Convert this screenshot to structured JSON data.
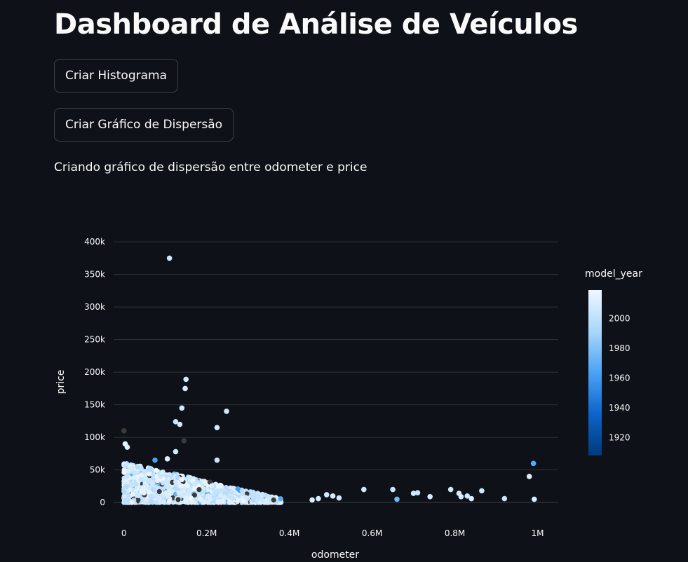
{
  "page": {
    "title": "Dashboard de Análise de Veículos",
    "buttons": {
      "histogram": "Criar Histograma",
      "scatter": "Criar Gráfico de Dispersão"
    },
    "status_text": "Criando gráfico de dispersão entre odometer e price"
  },
  "chart_data": {
    "type": "scatter",
    "xlabel": "odometer",
    "ylabel": "price",
    "xlim": [
      -25000,
      1050000
    ],
    "ylim": [
      -16000,
      412000
    ],
    "x_ticks": [
      {
        "v": 0,
        "label": "0"
      },
      {
        "v": 200000,
        "label": "0.2M"
      },
      {
        "v": 400000,
        "label": "0.4M"
      },
      {
        "v": 600000,
        "label": "0.6M"
      },
      {
        "v": 800000,
        "label": "0.8M"
      },
      {
        "v": 1000000,
        "label": "1M"
      }
    ],
    "y_ticks": [
      {
        "v": 0,
        "label": "0"
      },
      {
        "v": 50000,
        "label": "50k"
      },
      {
        "v": 100000,
        "label": "100k"
      },
      {
        "v": 150000,
        "label": "150k"
      },
      {
        "v": 200000,
        "label": "200k"
      },
      {
        "v": 250000,
        "label": "250k"
      },
      {
        "v": 300000,
        "label": "300k"
      },
      {
        "v": 350000,
        "label": "350k"
      },
      {
        "v": 400000,
        "label": "400k"
      }
    ],
    "grid": true,
    "colorbar": {
      "title": "model_year",
      "range": [
        1908,
        2019
      ],
      "ticks": [
        {
          "v": 2000,
          "label": "2000"
        },
        {
          "v": 1980,
          "label": "1980"
        },
        {
          "v": 1960,
          "label": "1960"
        },
        {
          "v": 1940,
          "label": "1940"
        },
        {
          "v": 1920,
          "label": "1920"
        }
      ],
      "colors": [
        "#003a7a",
        "#0b64c9",
        "#4aa3f5",
        "#a9d6fb",
        "#eef7ff"
      ]
    },
    "cluster": {
      "description": "dense cloud of several thousand listings, odometer 0–0.4M, price 0–60k, model_year mostly 1990–2019"
    },
    "points": [
      {
        "x": 110000,
        "y": 375000,
        "year": 2005
      },
      {
        "x": 150000,
        "y": 189000,
        "year": 2008
      },
      {
        "x": 148000,
        "y": 175000,
        "year": 2010
      },
      {
        "x": 140000,
        "y": 145000,
        "year": 2007
      },
      {
        "x": 248000,
        "y": 140000,
        "year": 2006
      },
      {
        "x": 125000,
        "y": 124000,
        "year": 2004
      },
      {
        "x": 135000,
        "y": 120000,
        "year": 2008
      },
      {
        "x": 225000,
        "y": 115000,
        "year": 2009
      },
      {
        "x": 0,
        "y": 110000
      },
      {
        "x": 145000,
        "y": 95000
      },
      {
        "x": 3000,
        "y": 90000,
        "year": 2015
      },
      {
        "x": 8000,
        "y": 85000,
        "year": 2014
      },
      {
        "x": 125000,
        "y": 78000,
        "year": 2008
      },
      {
        "x": 105000,
        "y": 67000,
        "year": 2012
      },
      {
        "x": 75000,
        "y": 65000,
        "year": 1962
      },
      {
        "x": 225000,
        "y": 65000,
        "year": 2003
      },
      {
        "x": 580000,
        "y": 20000,
        "year": 2006
      },
      {
        "x": 650000,
        "y": 20000,
        "year": 2004
      },
      {
        "x": 660000,
        "y": 5000,
        "year": 1975
      },
      {
        "x": 700000,
        "y": 14000,
        "year": 2008
      },
      {
        "x": 710000,
        "y": 15000,
        "year": 2005
      },
      {
        "x": 740000,
        "y": 9000,
        "year": 2009
      },
      {
        "x": 790000,
        "y": 20000,
        "year": 2006
      },
      {
        "x": 810000,
        "y": 14000,
        "year": 2008
      },
      {
        "x": 815000,
        "y": 9000,
        "year": 2010
      },
      {
        "x": 830000,
        "y": 10000,
        "year": 2007
      },
      {
        "x": 840000,
        "y": 6000,
        "year": 2011
      },
      {
        "x": 865000,
        "y": 18000,
        "year": 2006
      },
      {
        "x": 920000,
        "y": 6000,
        "year": 2004
      },
      {
        "x": 980000,
        "y": 40000,
        "year": 2012
      },
      {
        "x": 990000,
        "y": 60000,
        "year": 1968
      },
      {
        "x": 992000,
        "y": 5000,
        "year": 2010
      },
      {
        "x": 505000,
        "y": 10000,
        "year": 2009
      },
      {
        "x": 520000,
        "y": 7000,
        "year": 2007
      },
      {
        "x": 490000,
        "y": 12000,
        "year": 2006
      },
      {
        "x": 470000,
        "y": 6000,
        "year": 2008
      },
      {
        "x": 455000,
        "y": 4000,
        "year": 2010
      }
    ]
  }
}
